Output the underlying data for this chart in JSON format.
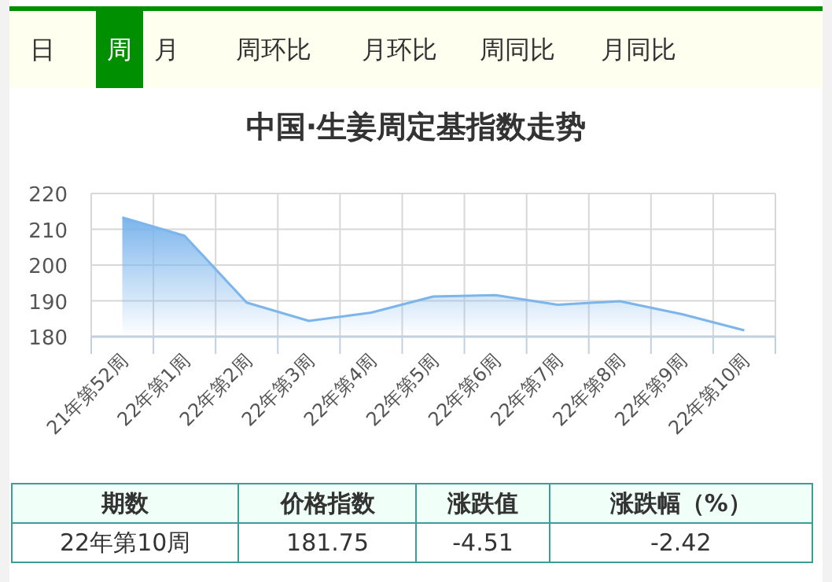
{
  "chart_data": {
    "type": "area",
    "title": "中国·生姜周定基指数走势",
    "categories": [
      "21年第52周",
      "22年第1周",
      "22年第2周",
      "22年第3周",
      "22年第4周",
      "22年第5周",
      "22年第6周",
      "22年第7周",
      "22年第8周",
      "22年第9周",
      "22年第10周"
    ],
    "series": [
      {
        "color": "#7cb5ec",
        "values": [
          213.3,
          208.2,
          189.5,
          184.4,
          186.7,
          191.2,
          191.6,
          188.9,
          189.9,
          186.26,
          181.75
        ]
      }
    ],
    "ylim": [
      180,
      220
    ],
    "yticks": [
      180,
      190,
      200,
      210,
      220
    ],
    "grid": true,
    "annotations": [
      "日",
      "周",
      "月",
      "周环比",
      "月环比",
      "周同比",
      "月同比",
      "期数",
      "价格指数",
      "涨跌值",
      "涨跌幅（%）",
      "22年第10周",
      "181.75",
      "-4.51",
      "-2.42"
    ]
  }
}
